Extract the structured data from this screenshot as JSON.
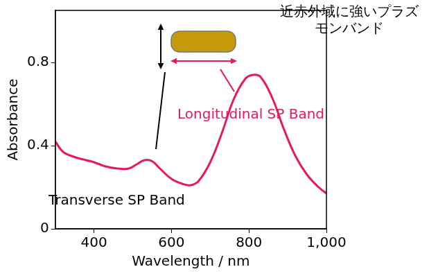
{
  "chart_data": {
    "type": "line",
    "x_label": "Wavelength / nm",
    "y_label": "Absorbance",
    "x": [
      300,
      320,
      350,
      380,
      400,
      430,
      460,
      490,
      510,
      530,
      550,
      570,
      600,
      630,
      650,
      670,
      700,
      730,
      760,
      790,
      810,
      830,
      860,
      890,
      920,
      950,
      980,
      1000
    ],
    "series": [
      {
        "color": "#e8185f",
        "values": [
          0.42,
          0.37,
          0.345,
          0.33,
          0.32,
          0.3,
          0.29,
          0.29,
          0.31,
          0.33,
          0.325,
          0.29,
          0.24,
          0.215,
          0.21,
          0.23,
          0.32,
          0.46,
          0.62,
          0.72,
          0.74,
          0.73,
          0.63,
          0.48,
          0.35,
          0.26,
          0.2,
          0.17
        ]
      }
    ],
    "xlim": [
      300,
      1000
    ],
    "xticks": [
      400,
      600,
      800,
      1000
    ],
    "ylim": [
      0,
      1.05
    ],
    "yticks": [
      0,
      0.4,
      0.8
    ],
    "grid": false,
    "annotations": [
      {
        "text": "Transverse SP Band",
        "color": "#000000"
      },
      {
        "text": "Longitudinal SP Band",
        "color": "#e8185f"
      },
      {
        "text": "近赤外域に強いプラズモンバンド",
        "color": "#000000"
      }
    ]
  }
}
